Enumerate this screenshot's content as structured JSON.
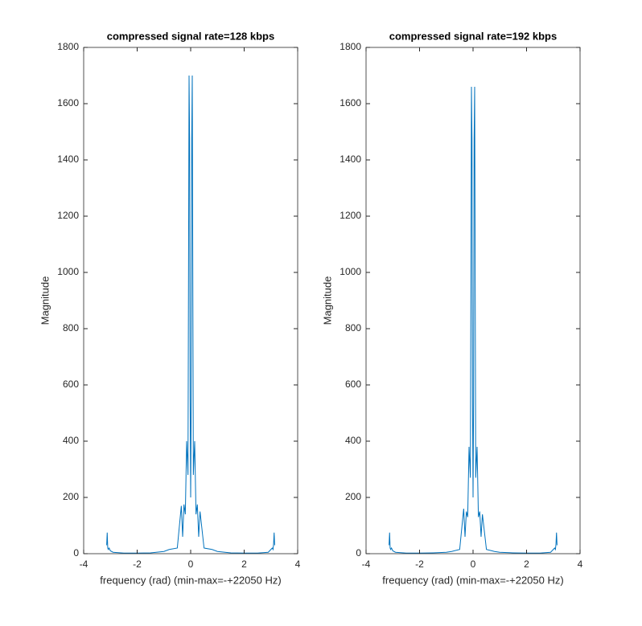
{
  "chart_data": [
    {
      "type": "line",
      "title": "compressed signal rate=128 kbps",
      "xlabel": "frequency (rad) (min-max=-+22050 Hz)",
      "ylabel": "Magnitude",
      "x": [
        -3.14,
        -3.12,
        -3.1,
        -3.08,
        -3.05,
        -3.0,
        -2.9,
        -2.5,
        -2.0,
        -1.5,
        -1.0,
        -0.8,
        -0.5,
        -0.35,
        -0.3,
        -0.25,
        -0.2,
        -0.15,
        -0.1,
        -0.06,
        -0.04,
        -0.02,
        0,
        0.02,
        0.04,
        0.06,
        0.1,
        0.15,
        0.2,
        0.25,
        0.3,
        0.35,
        0.5,
        0.8,
        1.0,
        1.5,
        2.0,
        2.5,
        2.9,
        3.0,
        3.05,
        3.08,
        3.1,
        3.12,
        3.14
      ],
      "values": [
        30,
        75,
        20,
        15,
        20,
        10,
        5,
        2,
        2,
        3,
        8,
        15,
        20,
        170,
        60,
        175,
        140,
        400,
        280,
        1700,
        1475,
        550,
        200,
        550,
        1475,
        1700,
        280,
        400,
        140,
        175,
        60,
        150,
        20,
        15,
        8,
        3,
        2,
        2,
        5,
        15,
        20,
        15,
        35,
        75,
        30
      ],
      "color": "#0072bd",
      "xlim": [
        -4,
        4
      ],
      "ylim": [
        0,
        1800
      ],
      "xticks": [
        -4,
        -2,
        0,
        2,
        4
      ],
      "yticks": [
        0,
        200,
        400,
        600,
        800,
        1000,
        1200,
        1400,
        1600,
        1800
      ]
    },
    {
      "type": "line",
      "title": "compressed signal rate=192 kbps",
      "xlabel": "frequency (rad) (min-max=-+22050 Hz)",
      "ylabel": "Magnitude",
      "x": [
        -3.14,
        -3.12,
        -3.1,
        -3.08,
        -3.05,
        -3.0,
        -2.9,
        -2.5,
        -2.0,
        -1.5,
        -1.0,
        -0.8,
        -0.5,
        -0.35,
        -0.3,
        -0.25,
        -0.2,
        -0.15,
        -0.1,
        -0.06,
        -0.04,
        -0.02,
        0,
        0.02,
        0.04,
        0.06,
        0.1,
        0.15,
        0.2,
        0.25,
        0.3,
        0.35,
        0.5,
        0.8,
        1.0,
        1.5,
        2.0,
        2.5,
        2.9,
        3.0,
        3.05,
        3.08,
        3.1,
        3.12,
        3.14
      ],
      "values": [
        30,
        75,
        20,
        15,
        20,
        10,
        5,
        2,
        2,
        3,
        5,
        8,
        15,
        160,
        60,
        150,
        130,
        380,
        270,
        1660,
        1475,
        540,
        200,
        540,
        1475,
        1660,
        270,
        380,
        130,
        150,
        60,
        140,
        15,
        8,
        5,
        3,
        2,
        2,
        5,
        15,
        20,
        15,
        35,
        75,
        30
      ],
      "color": "#0072bd",
      "xlim": [
        -4,
        4
      ],
      "ylim": [
        0,
        1800
      ],
      "xticks": [
        -4,
        -2,
        0,
        2,
        4
      ],
      "yticks": [
        0,
        200,
        400,
        600,
        800,
        1000,
        1200,
        1400,
        1600,
        1800
      ]
    }
  ]
}
